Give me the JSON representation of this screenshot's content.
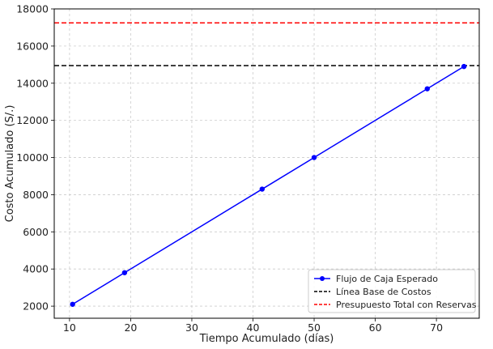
{
  "chart_data": {
    "type": "line",
    "title": "",
    "xlabel": "Tiempo Acumulado (días)",
    "ylabel": "Costo Acumulado (S/.)",
    "xlim": [
      7.5,
      77
    ],
    "ylim": [
      1350,
      18000
    ],
    "x_ticks": [
      10,
      20,
      30,
      40,
      50,
      60,
      70
    ],
    "y_ticks": [
      2000,
      4000,
      6000,
      8000,
      10000,
      12000,
      14000,
      16000,
      18000
    ],
    "grid": true,
    "legend_position": "bottom-right",
    "series": [
      {
        "name": "Flujo de Caja Esperado",
        "kind": "line-marker",
        "color": "#0000ff",
        "x": [
          10.5,
          19,
          41.5,
          50,
          68.5,
          74.5
        ],
        "y": [
          2100,
          3800,
          8300,
          10000,
          13700,
          14900
        ]
      }
    ],
    "hlines": [
      {
        "name": "Línea Base de Costos",
        "y": 14950,
        "color": "#000000",
        "style": "dashed"
      },
      {
        "name": "Presupuesto Total con Reservas",
        "y": 17250,
        "color": "#ff0000",
        "style": "dashed"
      }
    ]
  }
}
